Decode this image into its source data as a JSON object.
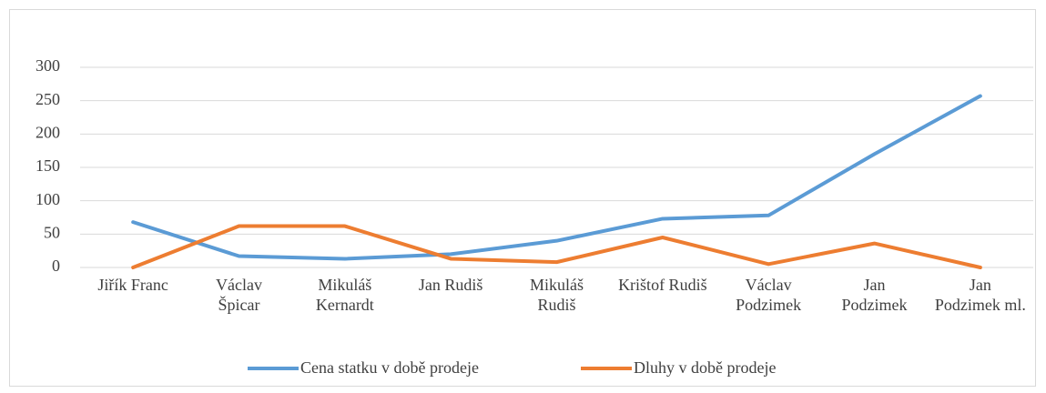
{
  "chart_data": {
    "type": "line",
    "categories": [
      "Jiřík Franc",
      "Václav Špicar",
      "Mikuláš Kernardt",
      "Jan Rudiš",
      "Mikuláš Rudiš",
      "Krištof Rudiš",
      "Václav Podzimek",
      "Jan Podzimek",
      "Jan Podzimek ml."
    ],
    "series": [
      {
        "name": "Cena statku v době prodeje",
        "color": "#5b9bd5",
        "values": [
          68,
          17,
          13,
          20,
          40,
          73,
          78,
          170,
          257
        ]
      },
      {
        "name": "Dluhy v době prodeje",
        "color": "#ed7d31",
        "values": [
          0,
          62,
          62,
          13,
          8,
          45,
          5,
          36,
          0
        ]
      }
    ],
    "ylim": [
      0,
      300
    ],
    "yticks": [
      0,
      50,
      100,
      150,
      200,
      250,
      300
    ],
    "grid": true,
    "legend": "bottom"
  }
}
